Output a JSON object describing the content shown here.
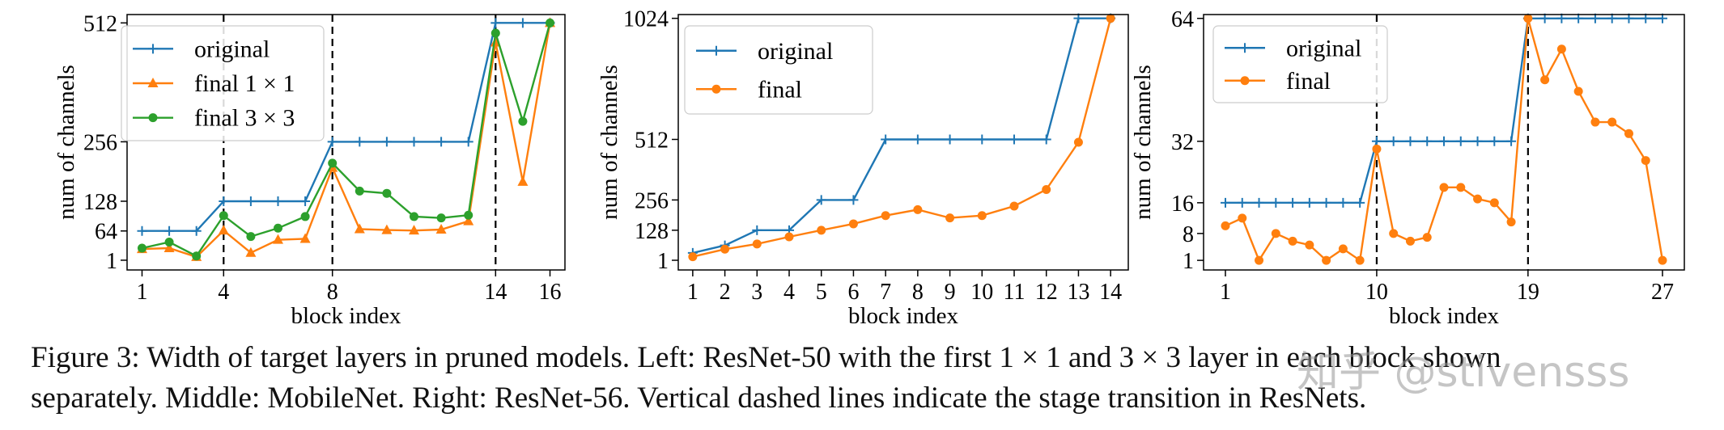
{
  "colors": {
    "blue": "#1f77b4",
    "orange": "#ff7f0e",
    "green": "#2ca02c"
  },
  "chart_data": [
    {
      "type": "line",
      "ylabel": "num of channels",
      "xlabel": "block index",
      "x": [
        1,
        2,
        3,
        4,
        5,
        6,
        7,
        8,
        9,
        10,
        11,
        12,
        13,
        14,
        15,
        16
      ],
      "xlim": [
        0.45,
        16.55
      ],
      "ylim": [
        -20,
        530
      ],
      "xticks": [
        1,
        4,
        8,
        14,
        16
      ],
      "yticks": [
        1,
        64,
        128,
        256,
        512
      ],
      "vlines": [
        4,
        8,
        14
      ],
      "legend_position": "upper-left",
      "series": [
        {
          "name": "original",
          "marker": "plus",
          "color": "blue",
          "values": [
            64,
            64,
            64,
            128,
            128,
            128,
            128,
            256,
            256,
            256,
            256,
            256,
            256,
            512,
            512,
            512
          ]
        },
        {
          "name": "final 1 × 1",
          "marker": "triangle",
          "color": "orange",
          "values": [
            25,
            27,
            8,
            65,
            17,
            45,
            47,
            200,
            68,
            66,
            65,
            67,
            85,
            470,
            170,
            512
          ]
        },
        {
          "name": "final 3 × 3",
          "marker": "circle",
          "color": "green",
          "values": [
            27,
            40,
            10,
            97,
            52,
            70,
            95,
            210,
            150,
            145,
            95,
            92,
            98,
            490,
            300,
            512
          ]
        }
      ]
    },
    {
      "type": "line",
      "ylabel": "num of channels",
      "xlabel": "block index",
      "x": [
        1,
        2,
        3,
        4,
        5,
        6,
        7,
        8,
        9,
        10,
        11,
        12,
        13,
        14
      ],
      "xlim": [
        0.55,
        14.55
      ],
      "ylim": [
        -40,
        1040
      ],
      "xticks": [
        1,
        2,
        3,
        4,
        5,
        6,
        7,
        8,
        9,
        10,
        11,
        12,
        13,
        14
      ],
      "yticks": [
        1,
        128,
        256,
        512,
        1024
      ],
      "vlines": [],
      "legend_position": "upper-left",
      "series": [
        {
          "name": "original",
          "marker": "plus",
          "color": "blue",
          "values": [
            32,
            64,
            128,
            128,
            256,
            256,
            512,
            512,
            512,
            512,
            512,
            512,
            1024,
            1024
          ]
        },
        {
          "name": "final",
          "marker": "circle",
          "color": "orange",
          "values": [
            16,
            48,
            70,
            100,
            128,
            155,
            190,
            215,
            180,
            190,
            230,
            300,
            500,
            1024
          ]
        }
      ]
    },
    {
      "type": "line",
      "ylabel": "num of channels",
      "xlabel": "block index",
      "x": [
        1,
        2,
        3,
        4,
        5,
        6,
        7,
        8,
        9,
        10,
        11,
        12,
        13,
        14,
        15,
        16,
        17,
        18,
        19,
        20,
        21,
        22,
        23,
        24,
        25,
        26,
        27
      ],
      "xlim": [
        -0.3,
        28.3
      ],
      "ylim": [
        -1.5,
        65
      ],
      "xticks": [
        1,
        10,
        19,
        27
      ],
      "yticks": [
        1,
        8,
        16,
        32,
        64
      ],
      "vlines": [
        10,
        19
      ],
      "legend_position": "upper-left",
      "series": [
        {
          "name": "original",
          "marker": "plus",
          "color": "blue",
          "values": [
            16,
            16,
            16,
            16,
            16,
            16,
            16,
            16,
            16,
            32,
            32,
            32,
            32,
            32,
            32,
            32,
            32,
            32,
            64,
            64,
            64,
            64,
            64,
            64,
            64,
            64,
            64
          ]
        },
        {
          "name": "final",
          "marker": "circle",
          "color": "orange",
          "values": [
            10,
            12,
            1,
            8,
            6,
            5,
            1,
            4,
            1,
            30,
            8,
            6,
            7,
            20,
            20,
            17,
            16,
            11,
            64,
            48,
            56,
            45,
            37,
            37,
            34,
            27,
            1
          ]
        }
      ]
    }
  ],
  "caption": {
    "line1": "Figure 3: Width of target layers in pruned models. Left: ResNet-50 with the first 1 × 1 and 3 × 3 layer in each block shown",
    "line2": "separately. Middle: MobileNet. Right: ResNet-56. Vertical dashed lines indicate the stage transition in ResNets."
  },
  "watermark": "知乎 @stivensss"
}
